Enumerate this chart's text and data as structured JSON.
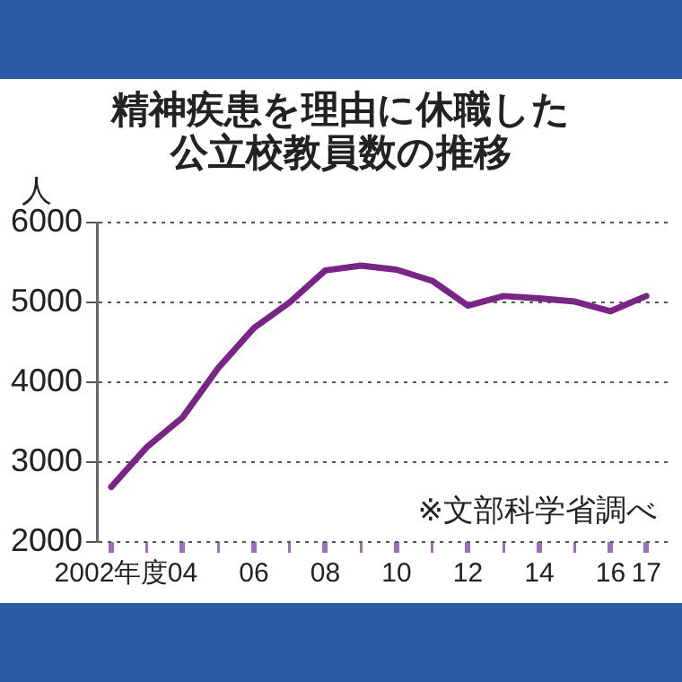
{
  "chart_data": {
    "type": "line",
    "title": "精神疾患を理由に休職した公立校教員数の推移",
    "ylabel": "人",
    "x": [
      2002,
      2003,
      2004,
      2005,
      2006,
      2007,
      2008,
      2009,
      2010,
      2011,
      2012,
      2013,
      2014,
      2015,
      2016,
      2017
    ],
    "series": [
      {
        "color": "#7b2487",
        "values": [
          2690,
          3190,
          3560,
          4180,
          4680,
          5000,
          5400,
          5460,
          5410,
          5270,
          4960,
          5080,
          5050,
          5010,
          4890,
          5080
        ]
      }
    ],
    "xlim": [
      2001.6,
      2017.6
    ],
    "xticks": [
      {
        "value": 2002,
        "label": "2002年度"
      },
      {
        "value": 2003,
        "label": null
      },
      {
        "value": 2004,
        "label": "04"
      },
      {
        "value": 2005,
        "label": null
      },
      {
        "value": 2006,
        "label": "06"
      },
      {
        "value": 2007,
        "label": null
      },
      {
        "value": 2008,
        "label": "08"
      },
      {
        "value": 2009,
        "label": null
      },
      {
        "value": 2010,
        "label": "10"
      },
      {
        "value": 2011,
        "label": null
      },
      {
        "value": 2012,
        "label": "12"
      },
      {
        "value": 2013,
        "label": null
      },
      {
        "value": 2014,
        "label": "14"
      },
      {
        "value": 2015,
        "label": null
      },
      {
        "value": 2016,
        "label": "16"
      },
      {
        "value": 2017,
        "label": "17"
      }
    ],
    "ylim": [
      2000,
      6000
    ],
    "yticks": [
      2000,
      3000,
      4000,
      5000,
      6000
    ],
    "grid": "y",
    "legend": false,
    "marker": "none",
    "line_style": "solid",
    "annotations": [
      "※文部科学省調べ"
    ]
  }
}
